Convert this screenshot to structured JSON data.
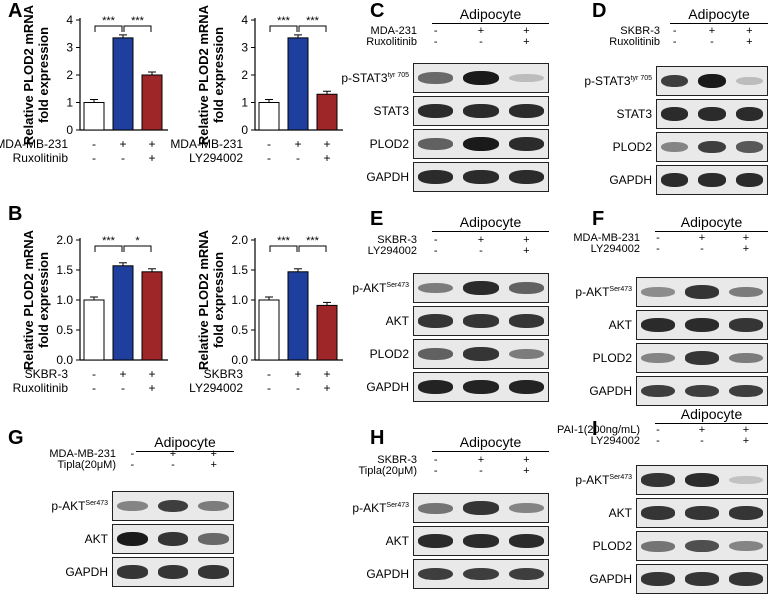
{
  "panels": {
    "A": "A",
    "B": "B",
    "C": "C",
    "D": "D",
    "E": "E",
    "F": "F",
    "G": "G",
    "H": "H",
    "I": "I"
  },
  "ylabel_line1": "Relative PLOD2 mRNA",
  "ylabel_line2": "fold expression",
  "chart_data": [
    {
      "type": "bar",
      "panel": "A-left",
      "categories": [
        "MDA-MB-231 -/Ruxolitinib -",
        "MDA-MB-231 +/Ruxolitinib -",
        "MDA-MB-231 +/Ruxolitinib +"
      ],
      "values": [
        1.0,
        3.35,
        2.0
      ],
      "ylim": [
        0,
        4
      ],
      "yticks": [
        "0",
        "1",
        "2",
        "3",
        "4"
      ],
      "colors": [
        "#ffffff",
        "#1f3f9e",
        "#9e2629"
      ],
      "significance": [
        "***",
        "***"
      ],
      "row_labels": [
        "MDA-MB-231",
        "Ruxolitinib"
      ],
      "row_signs": [
        [
          "-",
          "+",
          "+"
        ],
        [
          "-",
          "-",
          "+"
        ]
      ]
    },
    {
      "type": "bar",
      "panel": "A-right",
      "categories": [
        "MDA-MB-231 -/LY294002 -",
        "MDA-MB-231 +/LY294002 -",
        "MDA-MB-231 +/LY294002 +"
      ],
      "values": [
        1.0,
        3.35,
        1.3
      ],
      "ylim": [
        0,
        4
      ],
      "yticks": [
        "0",
        "1",
        "2",
        "3",
        "4"
      ],
      "colors": [
        "#ffffff",
        "#1f3f9e",
        "#9e2629"
      ],
      "significance": [
        "***",
        "***"
      ],
      "row_labels": [
        "MDA-MB-231",
        "LY294002"
      ],
      "row_signs": [
        [
          "-",
          "+",
          "+"
        ],
        [
          "-",
          "-",
          "+"
        ]
      ]
    },
    {
      "type": "bar",
      "panel": "B-left",
      "categories": [
        "SKBR-3 -/Ruxolitinib -",
        "SKBR-3 +/Ruxolitinib -",
        "SKBR-3 +/Ruxolitinib +"
      ],
      "values": [
        1.0,
        1.57,
        1.47
      ],
      "ylim": [
        0,
        2.0
      ],
      "yticks": [
        "0.0",
        "0.5",
        "1.0",
        "1.5",
        "2.0"
      ],
      "colors": [
        "#ffffff",
        "#1f3f9e",
        "#9e2629"
      ],
      "significance": [
        "***",
        "*"
      ],
      "row_labels": [
        "SKBR-3",
        "Ruxolitinib"
      ],
      "row_signs": [
        [
          "-",
          "+",
          "+"
        ],
        [
          "-",
          "-",
          "+"
        ]
      ]
    },
    {
      "type": "bar",
      "panel": "B-right",
      "categories": [
        "SKBR3 -/LY294002 -",
        "SKBR3 +/LY294002 -",
        "SKBR3 +/LY294002 +"
      ],
      "values": [
        1.0,
        1.47,
        0.91
      ],
      "ylim": [
        0,
        2.0
      ],
      "yticks": [
        "0.0",
        "0.5",
        "1.0",
        "1.5",
        "2.0"
      ],
      "colors": [
        "#ffffff",
        "#1f3f9e",
        "#9e2629"
      ],
      "significance": [
        "***",
        "***"
      ],
      "row_labels": [
        "SKBR3",
        "LY294002"
      ],
      "row_signs": [
        [
          "-",
          "+",
          "+"
        ],
        [
          "-",
          "-",
          "+"
        ]
      ]
    }
  ],
  "blots": {
    "header": "Adipocyte",
    "C": {
      "treat": [
        "MDA-231",
        "Ruxolitinib"
      ],
      "signs": [
        [
          "-",
          "+",
          "+"
        ],
        [
          "-",
          "-",
          "+"
        ]
      ],
      "rows": [
        "p-STAT3",
        "STAT3",
        "PLOD2",
        "GAPDH"
      ],
      "sup": "tyr 705"
    },
    "D": {
      "treat": [
        "SKBR-3",
        "Ruxolitinib"
      ],
      "signs": [
        [
          "-",
          "+",
          "+"
        ],
        [
          "-",
          "-",
          "+"
        ]
      ],
      "rows": [
        "p-STAT3",
        "STAT3",
        "PLOD2",
        "GAPDH"
      ],
      "sup": "tyr 705"
    },
    "E": {
      "treat": [
        "SKBR-3",
        "LY294002"
      ],
      "signs": [
        [
          "-",
          "+",
          "+"
        ],
        [
          "-",
          "-",
          "+"
        ]
      ],
      "rows": [
        "p-AKT",
        "AKT",
        "PLOD2",
        "GAPDH"
      ],
      "sup": "Ser473"
    },
    "F": {
      "treat": [
        "MDA-MB-231",
        "LY294002"
      ],
      "signs": [
        [
          "-",
          "+",
          "+"
        ],
        [
          "-",
          "-",
          "+"
        ]
      ],
      "rows": [
        "p-AKT",
        "AKT",
        "PLOD2",
        "GAPDH"
      ],
      "sup": "Ser473"
    },
    "G": {
      "treat": [
        "MDA-MB-231",
        "Tipla(20μM)"
      ],
      "signs": [
        [
          "-",
          "+",
          "+"
        ],
        [
          "-",
          "-",
          "+"
        ]
      ],
      "rows": [
        "p-AKT",
        "AKT",
        "GAPDH"
      ],
      "sup": "Ser473"
    },
    "H": {
      "treat": [
        "SKBR-3",
        "Tipla(20μM)"
      ],
      "signs": [
        [
          "-",
          "+",
          "+"
        ],
        [
          "-",
          "-",
          "+"
        ]
      ],
      "rows": [
        "p-AKT",
        "AKT",
        "GAPDH"
      ],
      "sup": "Ser473"
    },
    "I": {
      "treat": [
        "PAI-1(200ng/mL)",
        "LY294002"
      ],
      "signs": [
        [
          "-",
          "+",
          "+"
        ],
        [
          "-",
          "-",
          "+"
        ]
      ],
      "rows": [
        "p-AKT",
        "AKT",
        "PLOD2",
        "GAPDH"
      ],
      "sup": "Ser473"
    }
  }
}
